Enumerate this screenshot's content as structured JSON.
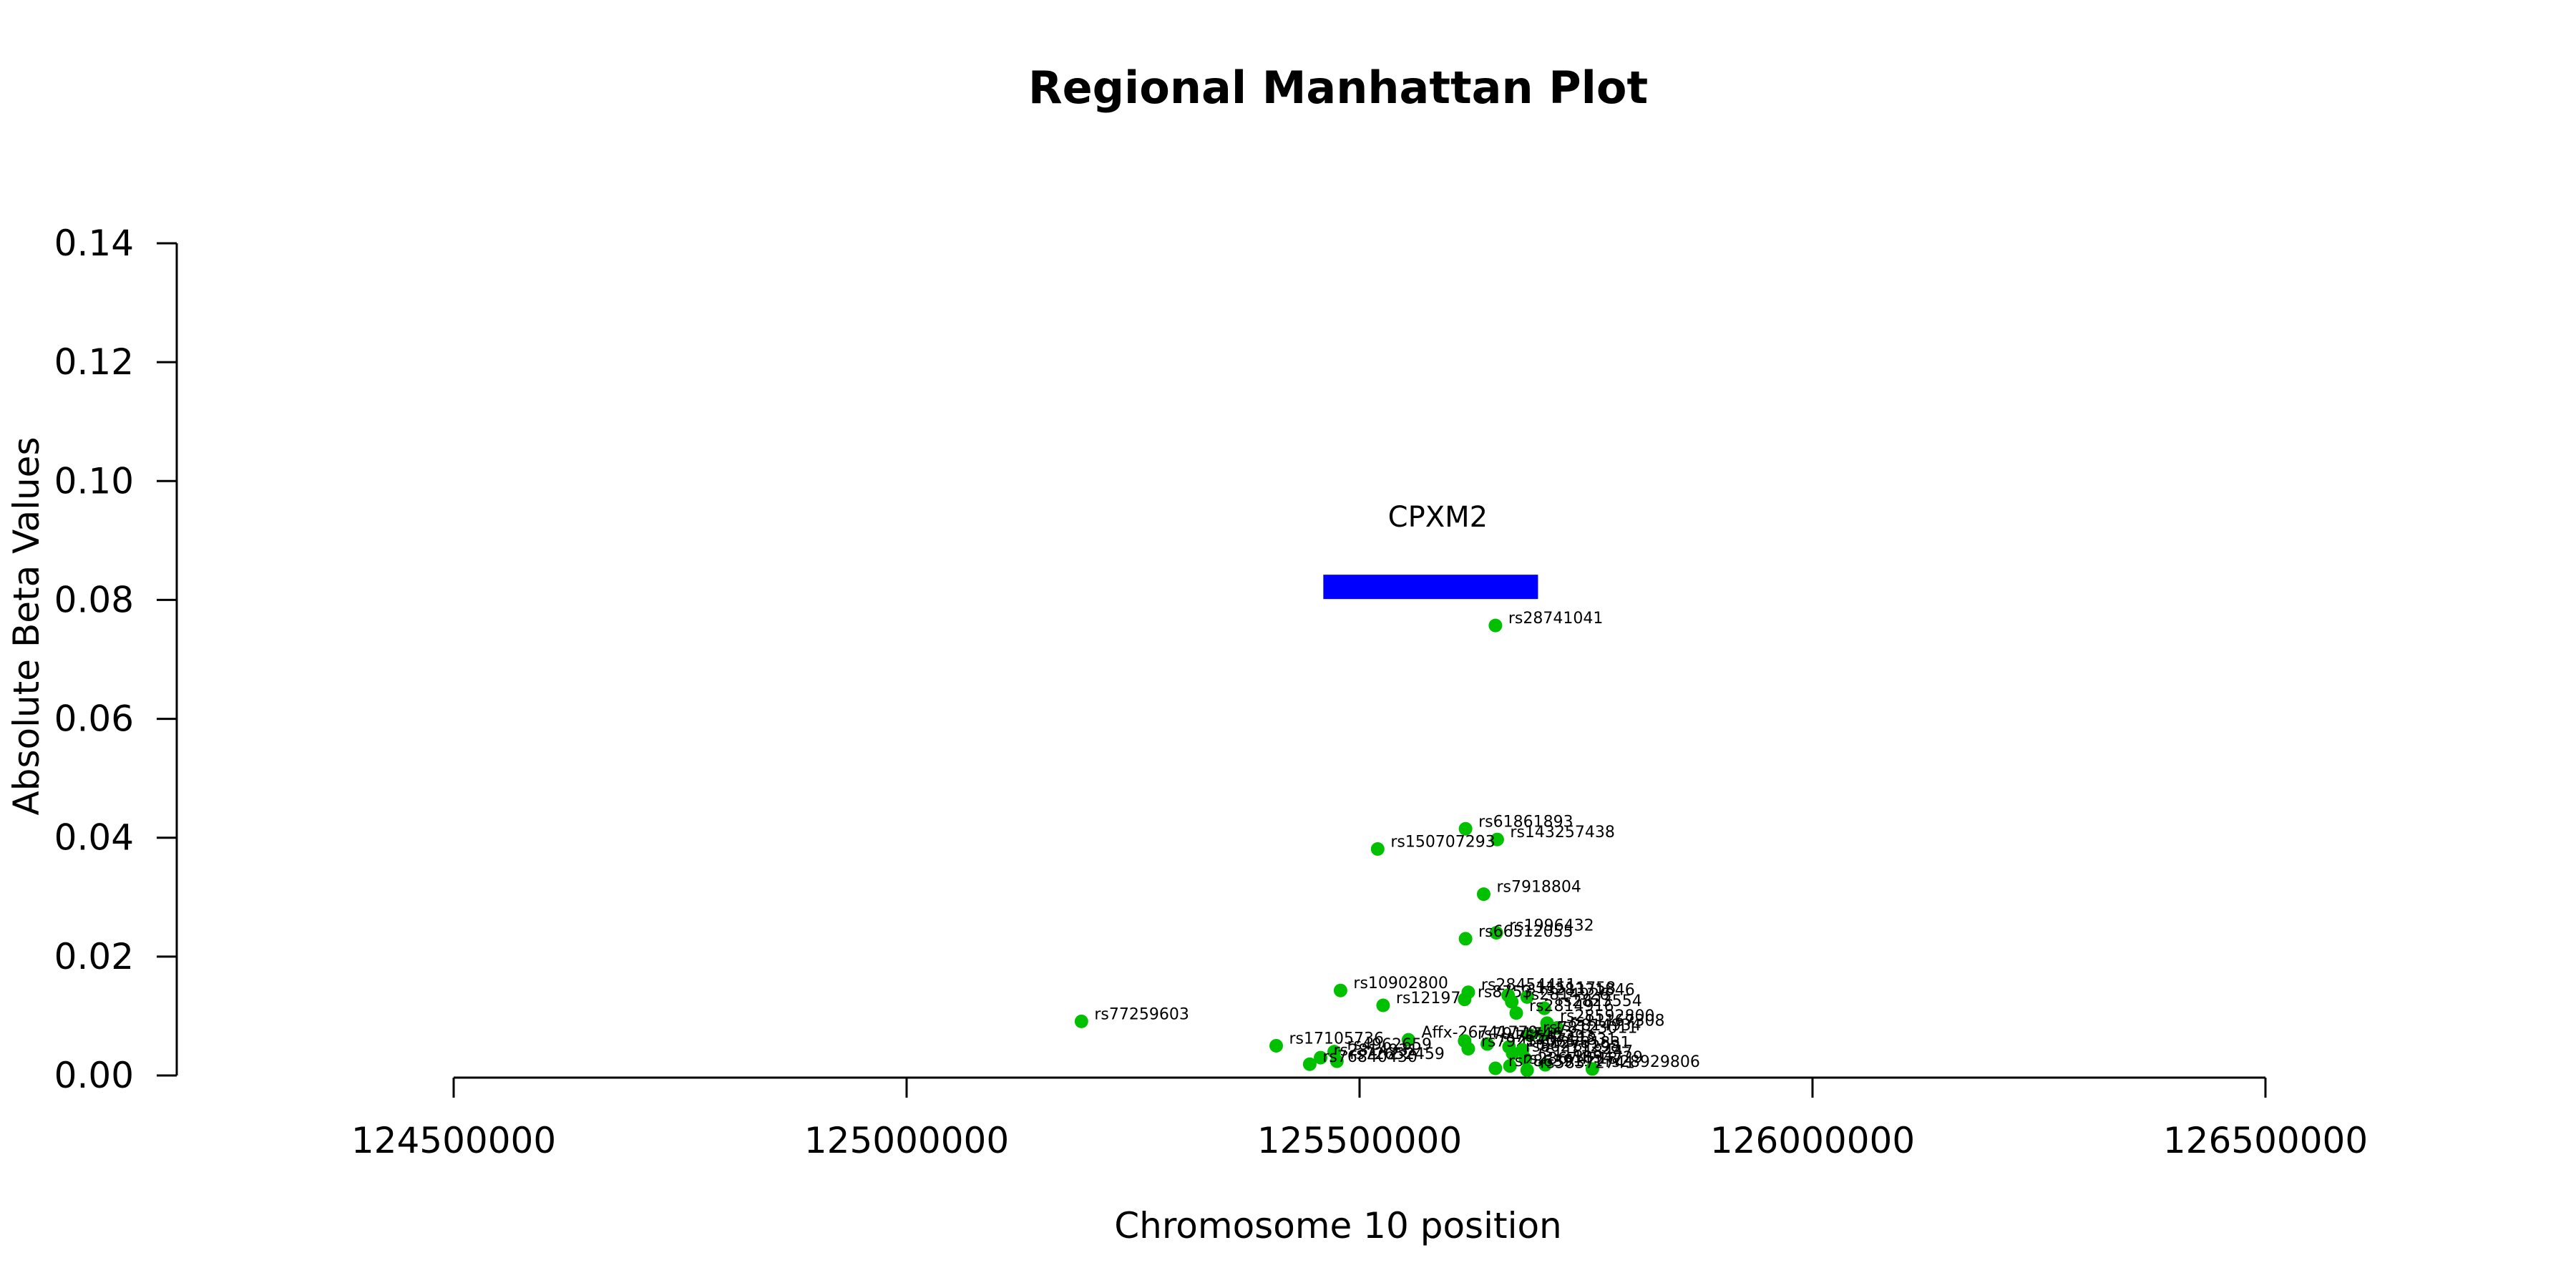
{
  "chart_data": {
    "type": "scatter",
    "title": "Regional Manhattan Plot",
    "xlabel": "Chromosome 10 position",
    "ylabel": "Absolute Beta Values",
    "xlim": [
      124500000,
      126500000
    ],
    "ylim": [
      0,
      0.14
    ],
    "x_ticks": [
      124500000,
      125000000,
      125500000,
      126000000,
      126500000
    ],
    "x_tick_labels": [
      "124500000",
      "125000000",
      "125500000",
      "126000000",
      "126500000"
    ],
    "y_ticks": [
      0,
      0.02,
      0.04,
      0.06,
      0.08,
      0.1,
      0.12,
      0.14
    ],
    "y_tick_labels": [
      "0.00",
      "0.02",
      "0.04",
      "0.06",
      "0.08",
      "0.10",
      "0.12",
      "0.14"
    ],
    "grid": false,
    "point_color": "#00c000",
    "gene": {
      "name": "CPXM2",
      "start": 125460000,
      "end": 125697000,
      "y": 0.0822,
      "color": "#0000ff"
    },
    "points": [
      {
        "x": 125650000,
        "y": 0.0757,
        "label": "rs28741041"
      },
      {
        "x": 125617000,
        "y": 0.0415,
        "label": "rs61861893"
      },
      {
        "x": 125652000,
        "y": 0.0397,
        "label": "rs143257438"
      },
      {
        "x": 125520000,
        "y": 0.0381,
        "label": "rs150707293"
      },
      {
        "x": 125637000,
        "y": 0.0305,
        "label": "rs7918804"
      },
      {
        "x": 125651000,
        "y": 0.024,
        "label": "rs1996432"
      },
      {
        "x": 125617000,
        "y": 0.023,
        "label": "rs66512055"
      },
      {
        "x": 125479000,
        "y": 0.0143,
        "label": "rs10902800"
      },
      {
        "x": 125620000,
        "y": 0.014,
        "label": "rs28454411"
      },
      {
        "x": 125664000,
        "y": 0.0135,
        "label": "rs11511758"
      },
      {
        "x": 125685000,
        "y": 0.0132,
        "label": "rs28331846"
      },
      {
        "x": 125616000,
        "y": 0.0128,
        "label": "rs8753"
      },
      {
        "x": 125668000,
        "y": 0.0124,
        "label": "rs2814926"
      },
      {
        "x": 125526000,
        "y": 0.0118,
        "label": "rs12197"
      },
      {
        "x": 125704000,
        "y": 0.0113,
        "label": "rs2823554"
      },
      {
        "x": 125673000,
        "y": 0.0105,
        "label": "rs2814916"
      },
      {
        "x": 125193000,
        "y": 0.0091,
        "label": "rs77259603"
      },
      {
        "x": 125707000,
        "y": 0.0088,
        "label": "rs28592800"
      },
      {
        "x": 125718000,
        "y": 0.008,
        "label": "rs11167308"
      },
      {
        "x": 125703000,
        "y": 0.0072,
        "label": "rs2814934"
      },
      {
        "x": 125688000,
        "y": 0.0068,
        "label": "rs78123011"
      },
      {
        "x": 125554000,
        "y": 0.006,
        "label": "Affx-26741779"
      },
      {
        "x": 125616000,
        "y": 0.0058,
        "label": "rs7911746"
      },
      {
        "x": 125641000,
        "y": 0.0053,
        "label": "rs76541293"
      },
      {
        "x": 125408000,
        "y": 0.005,
        "label": "rs17105736"
      },
      {
        "x": 125665000,
        "y": 0.0048,
        "label": "rs75711831"
      },
      {
        "x": 125620000,
        "y": 0.0045,
        "label": "rs79214065"
      },
      {
        "x": 125680000,
        "y": 0.0043,
        "label": "rs12781831"
      },
      {
        "x": 125472000,
        "y": 0.004,
        "label": "rs4962659"
      },
      {
        "x": 125669000,
        "y": 0.0037,
        "label": "rs80271298"
      },
      {
        "x": 125457000,
        "y": 0.003,
        "label": "rs2814931"
      },
      {
        "x": 125683000,
        "y": 0.0028,
        "label": "rs11818447"
      },
      {
        "x": 125475000,
        "y": 0.0024,
        "label": "rs72652459"
      },
      {
        "x": 125445000,
        "y": 0.0019,
        "label": "rs76840430"
      },
      {
        "x": 125705000,
        "y": 0.0018,
        "label": "rs1894729"
      },
      {
        "x": 125666000,
        "y": 0.0016,
        "label": "rs28674218"
      },
      {
        "x": 125650000,
        "y": 0.0012,
        "label": "rs28639111"
      },
      {
        "x": 125757000,
        "y": 0.0011,
        "label": "rs28929806"
      },
      {
        "x": 125685000,
        "y": 0.0009,
        "label": "rs58372741"
      }
    ]
  }
}
